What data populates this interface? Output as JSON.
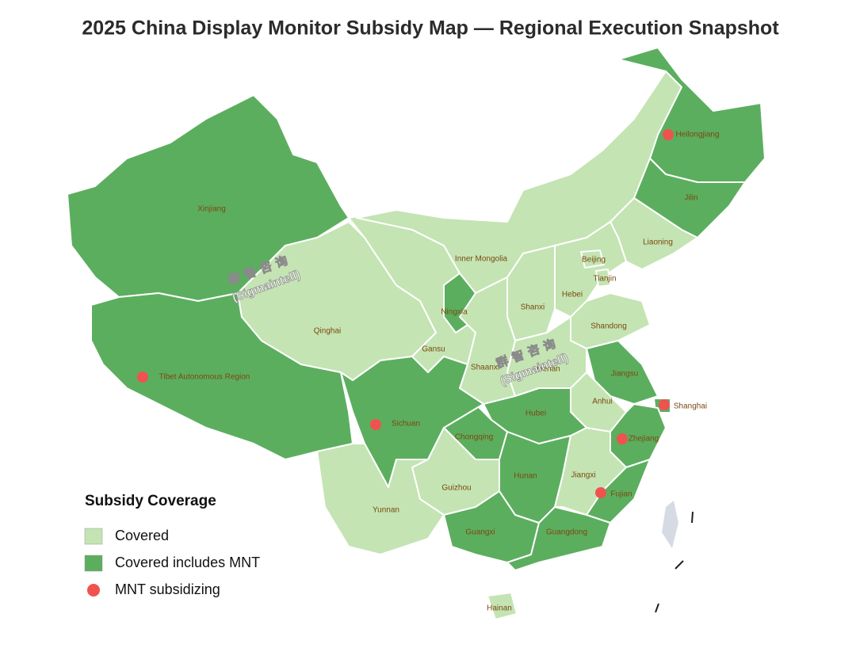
{
  "title": "2025 China Display Monitor Subsidy Map — Regional Execution Snapshot",
  "legend": {
    "title": "Subsidy Coverage",
    "items": [
      {
        "label": "Covered",
        "color": "#c4e4b3"
      },
      {
        "label": "Covered includes MNT",
        "color": "#5cae5f"
      },
      {
        "label": "MNT subsidizing",
        "color": "#f0524f"
      }
    ]
  },
  "regions": [
    {
      "name": "Xinjiang",
      "coverage": 1,
      "subsidizing": false
    },
    {
      "name": "Tibet Autonomous Region",
      "coverage": 1,
      "subsidizing": true
    },
    {
      "name": "Qinghai",
      "coverage": 0,
      "subsidizing": false
    },
    {
      "name": "Gansu",
      "coverage": 0,
      "subsidizing": false
    },
    {
      "name": "Inner Mongolia",
      "coverage": 0,
      "subsidizing": false
    },
    {
      "name": "Heilongjiang",
      "coverage": 1,
      "subsidizing": true
    },
    {
      "name": "Jilin",
      "coverage": 1,
      "subsidizing": false
    },
    {
      "name": "Liaoning",
      "coverage": 0,
      "subsidizing": false
    },
    {
      "name": "Hebei",
      "coverage": 0,
      "subsidizing": false
    },
    {
      "name": "Beijing",
      "coverage": 0,
      "subsidizing": false
    },
    {
      "name": "Tianjin",
      "coverage": 0,
      "subsidizing": false
    },
    {
      "name": "Shanxi",
      "coverage": 0,
      "subsidizing": false
    },
    {
      "name": "Ningxia",
      "coverage": 1,
      "subsidizing": false
    },
    {
      "name": "Shaanxi",
      "coverage": 0,
      "subsidizing": false
    },
    {
      "name": "Shandong",
      "coverage": 0,
      "subsidizing": false
    },
    {
      "name": "Henan",
      "coverage": 0,
      "subsidizing": false
    },
    {
      "name": "Jiangsu",
      "coverage": 1,
      "subsidizing": false
    },
    {
      "name": "Anhui",
      "coverage": 0,
      "subsidizing": false
    },
    {
      "name": "Shanghai",
      "coverage": 1,
      "subsidizing": true
    },
    {
      "name": "Zhejiang",
      "coverage": 1,
      "subsidizing": true
    },
    {
      "name": "Hubei",
      "coverage": 1,
      "subsidizing": false
    },
    {
      "name": "Chongqing",
      "coverage": 1,
      "subsidizing": false
    },
    {
      "name": "Sichuan",
      "coverage": 1,
      "subsidizing": true
    },
    {
      "name": "Guizhou",
      "coverage": 0,
      "subsidizing": false
    },
    {
      "name": "Yunnan",
      "coverage": 0,
      "subsidizing": false
    },
    {
      "name": "Hunan",
      "coverage": 1,
      "subsidizing": false
    },
    {
      "name": "Jiangxi",
      "coverage": 0,
      "subsidizing": false
    },
    {
      "name": "Fujian",
      "coverage": 1,
      "subsidizing": true
    },
    {
      "name": "Guangxi",
      "coverage": 1,
      "subsidizing": false
    },
    {
      "name": "Guangdong",
      "coverage": 1,
      "subsidizing": false
    },
    {
      "name": "Hainan",
      "coverage": 0,
      "subsidizing": false
    }
  ],
  "watermarks": [
    {
      "brand": "群智咨询",
      "latin": "(Sigmaintell)"
    },
    {
      "brand": "群智咨询",
      "latin": "(Sigmaintell)"
    }
  ]
}
